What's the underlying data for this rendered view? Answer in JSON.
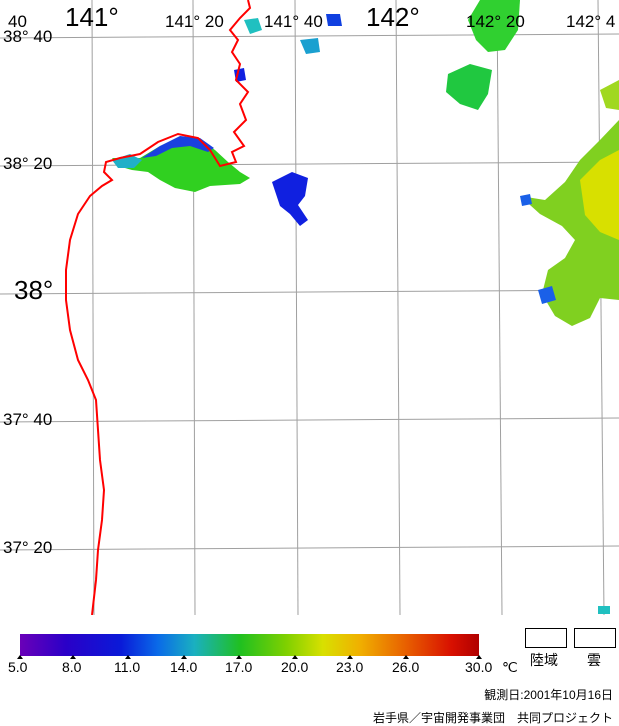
{
  "map": {
    "lon_labels_top": [
      {
        "text": "141°",
        "size": "big"
      },
      {
        "text": "141° 20",
        "size": "small"
      },
      {
        "text": "141° 40",
        "size": "small"
      },
      {
        "text": "142°",
        "size": "big"
      },
      {
        "text": "142° 20",
        "size": "small"
      },
      {
        "text": "142° 4",
        "size": "small"
      }
    ],
    "lat_labels_left": [
      {
        "text": "40",
        "size": "small"
      },
      {
        "text": "38° 40",
        "size": "small"
      },
      {
        "text": "38° 20",
        "size": "small"
      },
      {
        "text": "38°",
        "size": "big"
      },
      {
        "text": "37° 40",
        "size": "small"
      },
      {
        "text": "37° 20",
        "size": "small"
      }
    ],
    "colors": {
      "coastline": "#ff0000",
      "grid": "#a0a0a0"
    }
  },
  "colorbar": {
    "ticks": [
      "5.0",
      "8.0",
      "11.0",
      "14.0",
      "17.0",
      "20.0",
      "23.0",
      "26.0",
      "30.0"
    ],
    "unit": "℃"
  },
  "legend": {
    "land_label": "陸域",
    "cloud_label": "雲"
  },
  "footer": {
    "observation_date": "観測日:2001年10月16日",
    "credit": "岩手県／宇宙開発事業団　共同プロジェクト"
  }
}
